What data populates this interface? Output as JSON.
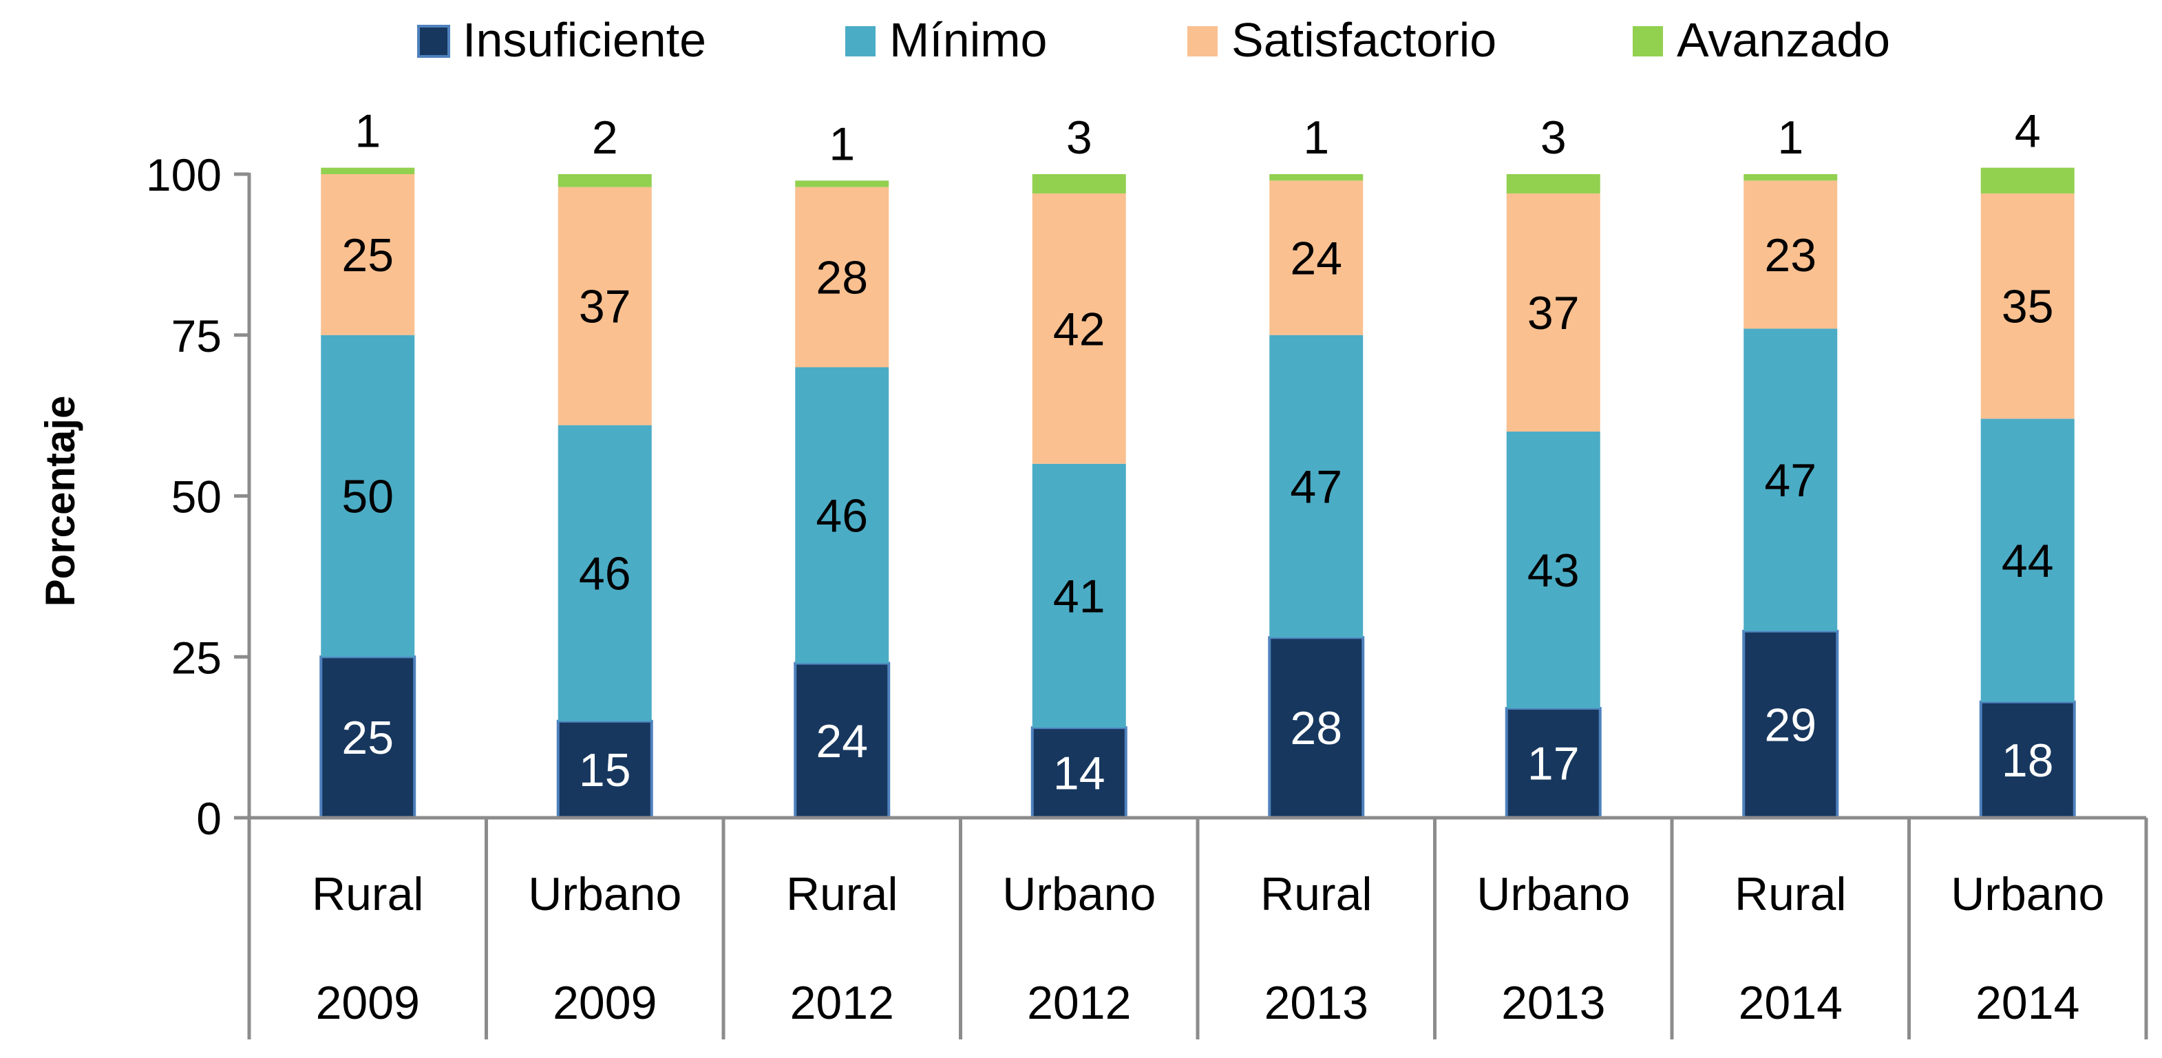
{
  "chart_data": {
    "type": "bar",
    "stacked": true,
    "title": "",
    "ylabel": "Porcentaje",
    "xlabel": "",
    "ylim": [
      0,
      100
    ],
    "yticks": [
      0,
      25,
      50,
      75,
      100
    ],
    "legend_position": "top",
    "categories": [
      "Rural",
      "Urbano",
      "Rural",
      "Urbano",
      "Rural",
      "Urbano",
      "Rural",
      "Urbano"
    ],
    "category_groups": [
      "2009",
      "2009",
      "2012",
      "2012",
      "2013",
      "2013",
      "2014",
      "2014"
    ],
    "series": [
      {
        "name": "Insuficiente",
        "color": "#17375e",
        "label_color": "#ffffff",
        "values": [
          25,
          15,
          24,
          14,
          28,
          17,
          29,
          18
        ]
      },
      {
        "name": "Mínimo",
        "color": "#4bacc6",
        "label_color": "#000000",
        "values": [
          50,
          46,
          46,
          41,
          47,
          43,
          47,
          44
        ]
      },
      {
        "name": "Satisfactorio",
        "color": "#fac090",
        "label_color": "#000000",
        "values": [
          25,
          37,
          28,
          42,
          24,
          37,
          23,
          35
        ]
      },
      {
        "name": "Avanzado",
        "color": "#92d050",
        "label_color": "#000000",
        "values": [
          1,
          2,
          1,
          3,
          1,
          3,
          1,
          4
        ]
      }
    ],
    "grid": false
  }
}
